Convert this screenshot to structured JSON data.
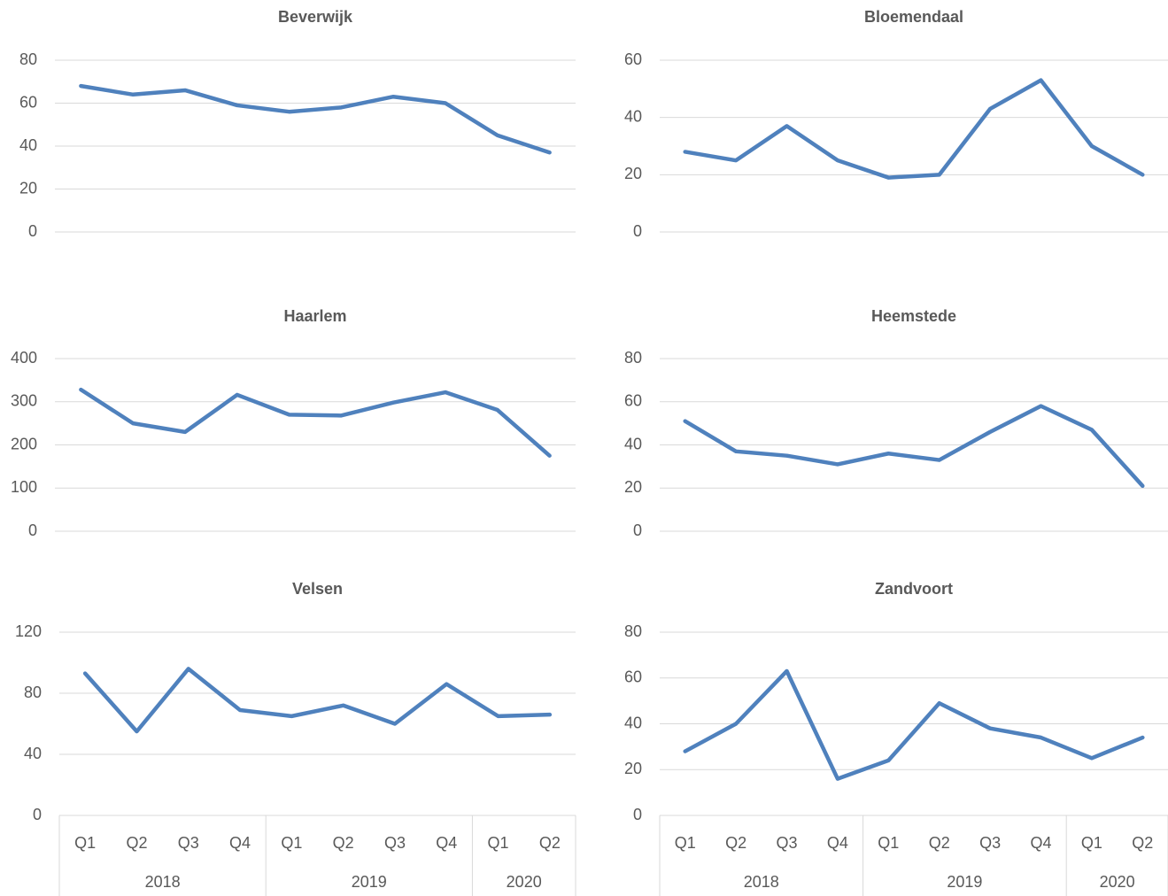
{
  "chart_data": [
    {
      "type": "line",
      "title": "Beverwijk",
      "values": [
        68,
        64,
        66,
        59,
        56,
        58,
        63,
        60,
        45,
        37
      ],
      "color": "#4f81bd",
      "ylim": [
        0,
        80
      ],
      "yticks": [
        0,
        20,
        40,
        60,
        80
      ],
      "grid": true
    },
    {
      "type": "line",
      "title": "Bloemendaal",
      "values": [
        28,
        25,
        37,
        25,
        19,
        20,
        43,
        53,
        30,
        20
      ],
      "color": "#4f81bd",
      "ylim": [
        0,
        60
      ],
      "yticks": [
        0,
        20,
        40,
        60
      ],
      "grid": true
    },
    {
      "type": "line",
      "title": "Haarlem",
      "values": [
        328,
        250,
        230,
        316,
        270,
        268,
        298,
        322,
        281,
        175
      ],
      "color": "#4f81bd",
      "ylim": [
        0,
        400
      ],
      "yticks": [
        0,
        100,
        200,
        300,
        400
      ],
      "grid": true
    },
    {
      "type": "line",
      "title": "Heemstede",
      "values": [
        51,
        37,
        35,
        31,
        36,
        33,
        46,
        58,
        47,
        21
      ],
      "color": "#4f81bd",
      "ylim": [
        0,
        80
      ],
      "yticks": [
        0,
        20,
        40,
        60,
        80
      ],
      "grid": true
    },
    {
      "type": "line",
      "title": "Velsen",
      "values": [
        93,
        55,
        96,
        69,
        65,
        72,
        60,
        86,
        65,
        66
      ],
      "color": "#4f81bd",
      "ylim": [
        0,
        120
      ],
      "yticks": [
        0,
        40,
        80,
        120
      ],
      "grid": true,
      "groups": [
        {
          "label": "2018",
          "categories": [
            "Q1",
            "Q2",
            "Q3",
            "Q4"
          ]
        },
        {
          "label": "2019",
          "categories": [
            "Q1",
            "Q2",
            "Q3",
            "Q4"
          ]
        },
        {
          "label": "2020",
          "categories": [
            "Q1",
            "Q2"
          ]
        }
      ]
    },
    {
      "type": "line",
      "title": "Zandvoort",
      "values": [
        28,
        40,
        63,
        16,
        24,
        49,
        38,
        34,
        25,
        34
      ],
      "color": "#4f81bd",
      "ylim": [
        0,
        80
      ],
      "yticks": [
        0,
        20,
        40,
        60,
        80
      ],
      "grid": true,
      "groups": [
        {
          "label": "2018",
          "categories": [
            "Q1",
            "Q2",
            "Q3",
            "Q4"
          ]
        },
        {
          "label": "2019",
          "categories": [
            "Q1",
            "Q2",
            "Q3",
            "Q4"
          ]
        },
        {
          "label": "2020",
          "categories": [
            "Q1",
            "Q2"
          ]
        }
      ]
    }
  ]
}
